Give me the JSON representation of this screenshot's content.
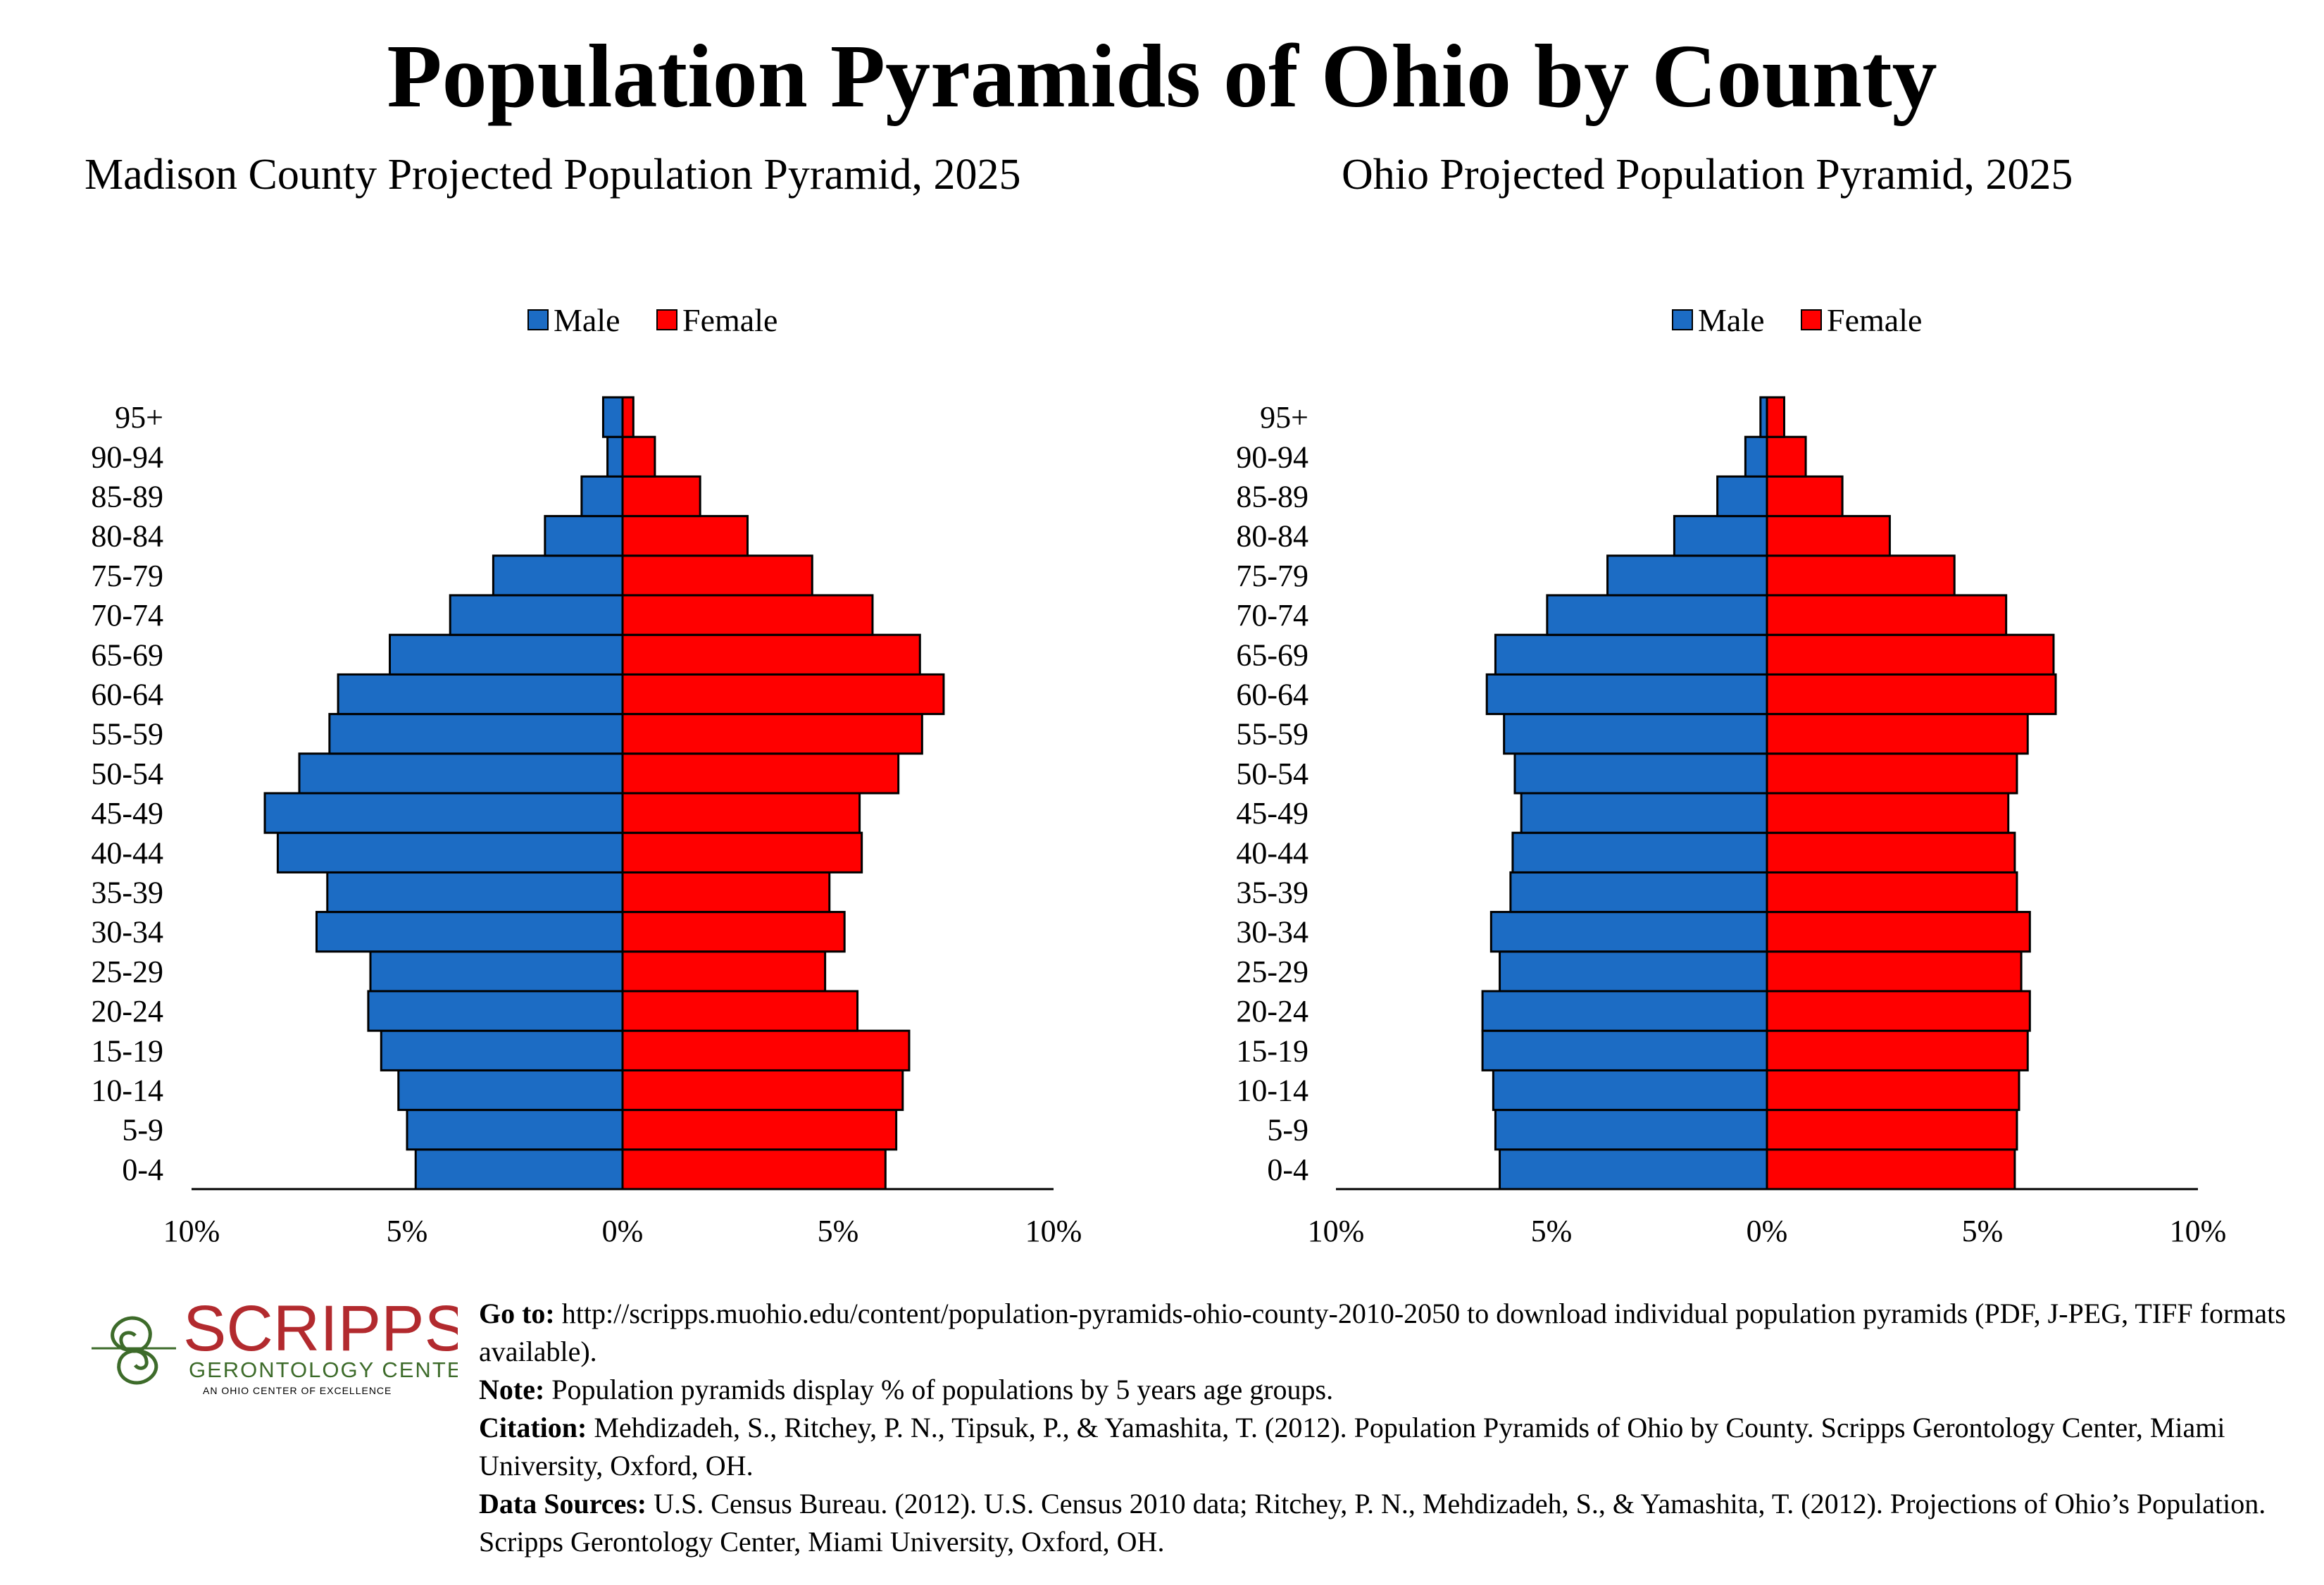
{
  "page_title": "Population Pyramids of Ohio by County",
  "chart_data": [
    {
      "type": "bar",
      "subtype": "population-pyramid",
      "title": "Madison County Projected Population Pyramid, 2025",
      "legend": [
        "Male",
        "Female"
      ],
      "legend_position": "top-center",
      "categories": [
        "0-4",
        "5-9",
        "10-14",
        "15-19",
        "20-24",
        "25-29",
        "30-34",
        "35-39",
        "40-44",
        "45-49",
        "50-54",
        "55-59",
        "60-64",
        "65-69",
        "70-74",
        "75-79",
        "80-84",
        "85-89",
        "90-94",
        "95+"
      ],
      "series": [
        {
          "name": "Male",
          "color": "#1c6cc4",
          "values": [
            4.8,
            5.0,
            5.2,
            5.6,
            5.9,
            5.85,
            7.1,
            6.85,
            8.0,
            8.3,
            7.5,
            6.8,
            6.6,
            5.4,
            4.0,
            3.0,
            1.8,
            0.95,
            0.35,
            0.45
          ]
        },
        {
          "name": "Female",
          "color": "#ff0000",
          "values": [
            6.1,
            6.35,
            6.5,
            6.65,
            5.45,
            4.7,
            5.15,
            4.8,
            5.55,
            5.5,
            6.4,
            6.95,
            7.45,
            6.9,
            5.8,
            4.4,
            2.9,
            1.8,
            0.75,
            0.25
          ]
        }
      ],
      "xlim": [
        -10,
        10
      ],
      "xticks": [
        "10%",
        "5%",
        "0%",
        "5%",
        "10%"
      ]
    },
    {
      "type": "bar",
      "subtype": "population-pyramid",
      "title": "Ohio Projected Population Pyramid, 2025",
      "legend": [
        "Male",
        "Female"
      ],
      "legend_position": "top-center",
      "categories": [
        "0-4",
        "5-9",
        "10-14",
        "15-19",
        "20-24",
        "25-29",
        "30-34",
        "35-39",
        "40-44",
        "45-49",
        "50-54",
        "55-59",
        "60-64",
        "65-69",
        "70-74",
        "75-79",
        "80-84",
        "85-89",
        "90-94",
        "95+"
      ],
      "series": [
        {
          "name": "Male",
          "color": "#1c6cc4",
          "values": [
            6.2,
            6.3,
            6.35,
            6.6,
            6.6,
            6.2,
            6.4,
            5.95,
            5.9,
            5.7,
            5.85,
            6.1,
            6.5,
            6.3,
            5.1,
            3.7,
            2.15,
            1.15,
            0.5,
            0.15
          ]
        },
        {
          "name": "Female",
          "color": "#ff0000",
          "values": [
            5.75,
            5.8,
            5.85,
            6.05,
            6.1,
            5.9,
            6.1,
            5.8,
            5.75,
            5.6,
            5.8,
            6.05,
            6.7,
            6.65,
            5.55,
            4.35,
            2.85,
            1.75,
            0.9,
            0.4
          ]
        }
      ],
      "xlim": [
        -10,
        10
      ],
      "xticks": [
        "10%",
        "5%",
        "0%",
        "5%",
        "10%"
      ]
    }
  ],
  "logo": {
    "name": "SCRIPPS",
    "line2": "GERONTOLOGY CENTER",
    "line3": "AN OHIO CENTER OF EXCELLENCE",
    "color": "#b22a2e",
    "accent": "#3d6b2a"
  },
  "footer": {
    "goto_label": "Go to:",
    "goto_text": "http://scripps.muohio.edu/content/population-pyramids-ohio-county-2010-2050 to download individual population pyramids (PDF, J-PEG, TIFF formats available).",
    "note_label": "Note:",
    "note_text": "Population pyramids display % of populations by 5 years age groups.",
    "citation_label": "Citation:",
    "citation_text": "Mehdizadeh, S., Ritchey, P. N., Tipsuk, P., & Yamashita, T. (2012). Population Pyramids of Ohio by County. Scripps Gerontology Center, Miami University, Oxford, OH.",
    "sources_label": "Data Sources:",
    "sources_text": "U.S. Census Bureau. (2012). U.S. Census 2010 data; Ritchey, P. N., Mehdizadeh, S., & Yamashita, T. (2012). Projections of Ohio’s Population. Scripps Gerontology Center, Miami University, Oxford, OH."
  }
}
